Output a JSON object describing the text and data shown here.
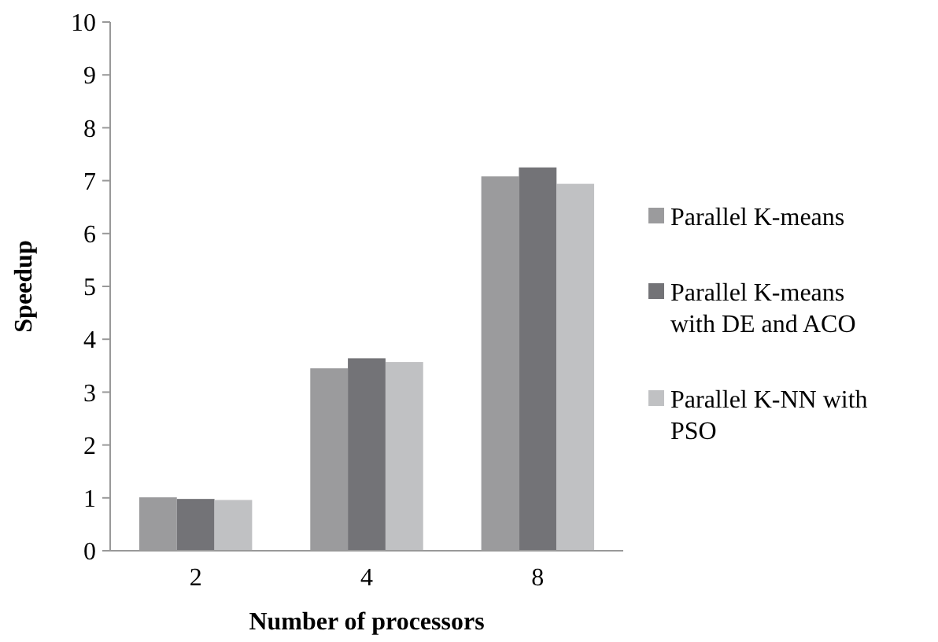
{
  "chart_data": {
    "type": "bar",
    "xlabel": "Number of processors",
    "ylabel": "Speedup",
    "categories": [
      "2",
      "4",
      "8"
    ],
    "series": [
      {
        "name": "Parallel K-means",
        "color": "#9b9b9d",
        "values": [
          1.01,
          3.45,
          7.08
        ]
      },
      {
        "name": "Parallel K-means with DE and ACO",
        "color": "#737377",
        "values": [
          0.98,
          3.64,
          7.25
        ]
      },
      {
        "name": "Parallel K-NN with PSO",
        "color": "#c0c1c3",
        "values": [
          0.96,
          3.57,
          6.94
        ]
      }
    ],
    "ylim": [
      0,
      10
    ],
    "yticks": [
      0,
      1,
      2,
      3,
      4,
      5,
      6,
      7,
      8,
      9,
      10
    ],
    "legend": "right"
  }
}
